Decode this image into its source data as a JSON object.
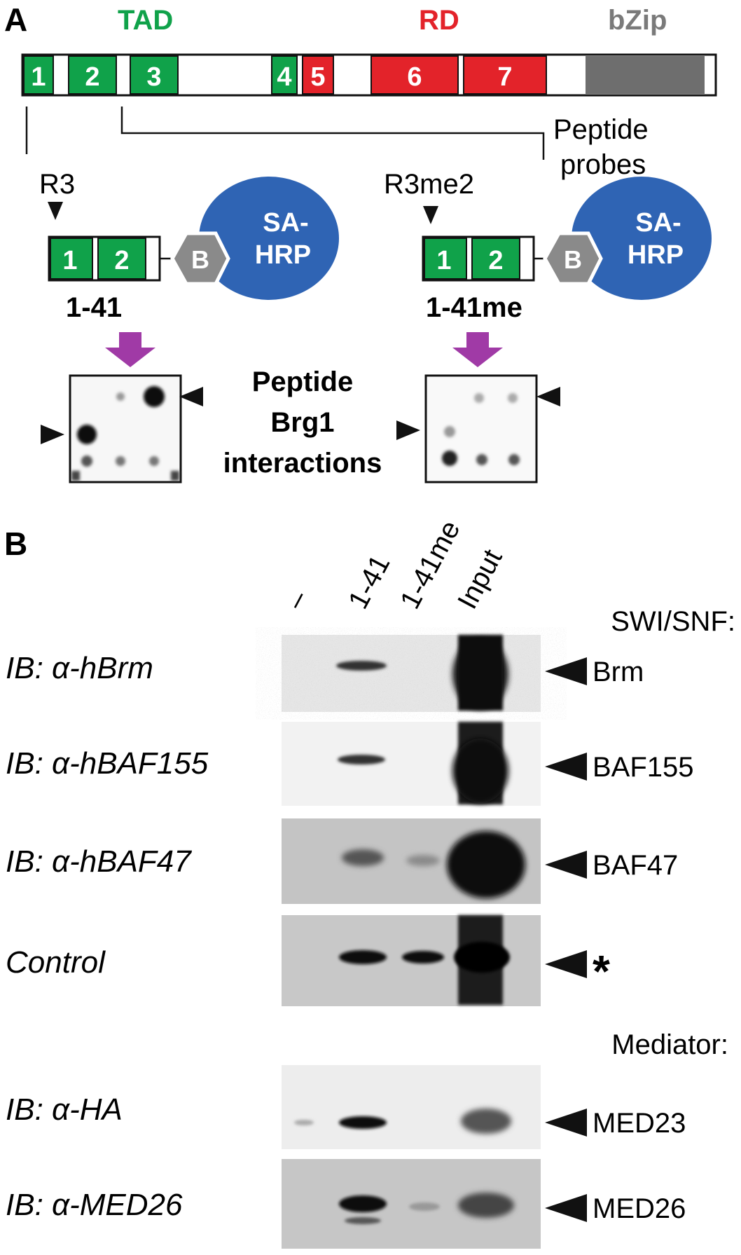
{
  "panel_a": {
    "label": "A",
    "domains": {
      "tad": "TAD",
      "rd": "RD",
      "bzip": "bZip"
    },
    "segments": [
      "1",
      "2",
      "3",
      "4",
      "5",
      "6",
      "7"
    ],
    "probes_label_line1": "Peptide",
    "probes_label_line2": "probes",
    "probe_left": {
      "mod": "R3",
      "seg1": "1",
      "seg2": "2",
      "badge": "B",
      "enzyme1": "SA-",
      "enzyme2": "HRP",
      "name": "1-41"
    },
    "probe_right": {
      "mod": "R3me2",
      "seg1": "1",
      "seg2": "2",
      "badge": "B",
      "enzyme1": "SA-",
      "enzyme2": "HRP",
      "name": "1-41me"
    },
    "array_label": [
      "Peptide",
      "Brg1",
      "interactions"
    ],
    "colors": {
      "green": "#10a24a",
      "red": "#e3232a",
      "gray": "#707070",
      "blue": "#2f64b4",
      "magenta": "#a03aa6"
    }
  },
  "panel_b": {
    "label": "B",
    "lanes": [
      "–",
      "1-41",
      "1-41me",
      "Input"
    ],
    "group1": "SWI/SNF:",
    "group2": "Mediator:",
    "blots": [
      {
        "ib": "IB: α-hBrm",
        "target": "Brm"
      },
      {
        "ib": "IB: α-hBAF155",
        "target": "BAF155"
      },
      {
        "ib": "IB: α-hBAF47",
        "target": "BAF47"
      },
      {
        "ib": "Control",
        "target": "*"
      },
      {
        "ib": "IB: α-HA",
        "target": "MED23"
      },
      {
        "ib": "IB: α-MED26",
        "target": "MED26"
      }
    ]
  }
}
